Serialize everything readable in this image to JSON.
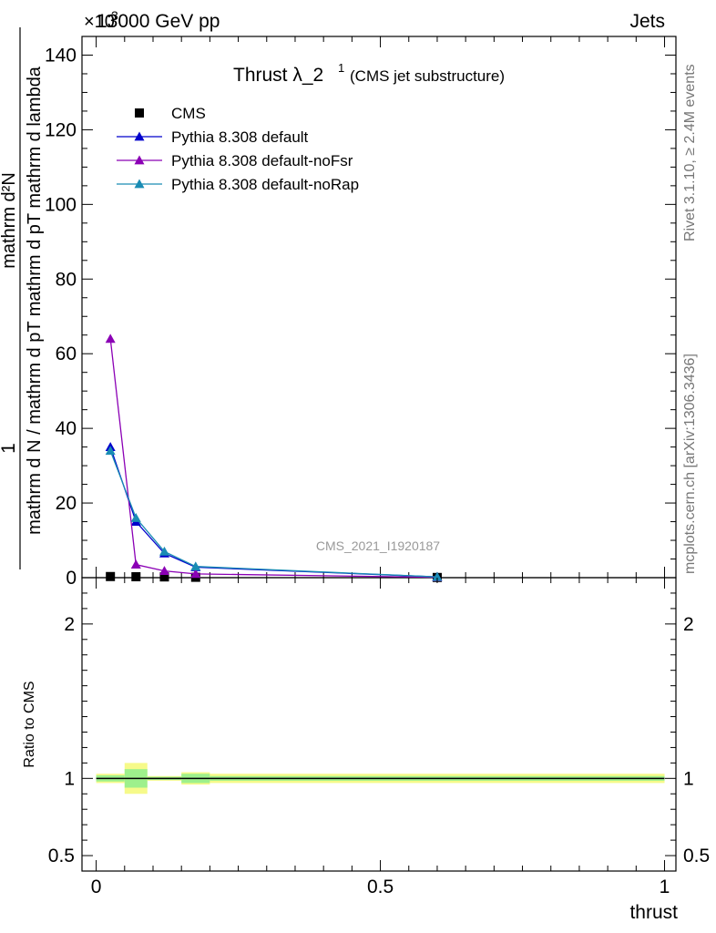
{
  "header": {
    "left": "13000 GeV pp",
    "right": "Jets",
    "exponent_prefix": "×10",
    "exponent": "3"
  },
  "side_labels": {
    "rivet": "Rivet 3.1.10, ≥ 2.4M events",
    "mcplots": "mcplots.cern.ch [arXiv:1306.3436]"
  },
  "watermark": "CMS_2021_I1920187",
  "chart_data": [
    {
      "type": "line",
      "title": "Thrust λ_2",
      "title_sup": "1",
      "subtitle": "(CMS jet substructure)",
      "ylabel_top": "1",
      "ylabel_num": "mathrm d²N",
      "ylabel_den": "mathrm d N / mathrm d pT mathrm d pT mathrm d lambda",
      "ylim": [
        0,
        145
      ],
      "y_ticks": [
        0,
        20,
        40,
        60,
        80,
        100,
        120,
        140
      ],
      "y_tick_labels": [
        "0",
        "20",
        "40",
        "60",
        "80",
        "100",
        "120",
        "140"
      ],
      "xlim": [
        -0.025,
        1.02
      ],
      "legend_position": "top-left",
      "series": [
        {
          "name": "CMS",
          "marker": "square",
          "color": "#000000",
          "x": [
            0.025,
            0.07,
            0.12,
            0.175,
            0.6
          ],
          "values": [
            0.3,
            0.25,
            0.2,
            0.1,
            0.05
          ]
        },
        {
          "name": "Pythia 8.308 default",
          "marker": "triangle",
          "color": "#0000cc",
          "x": [
            0.025,
            0.07,
            0.12,
            0.175,
            0.6
          ],
          "values": [
            35,
            15,
            6.5,
            2.8,
            0.2
          ]
        },
        {
          "name": "Pythia 8.308 default-noFsr",
          "marker": "triangle",
          "color": "#8b00b5",
          "x": [
            0.025,
            0.07,
            0.12,
            0.175,
            0.6
          ],
          "values": [
            64,
            3.5,
            1.8,
            1.0,
            0.1
          ]
        },
        {
          "name": "Pythia 8.308 default-noRap",
          "marker": "triangle",
          "color": "#1a8cb4",
          "x": [
            0.025,
            0.07,
            0.12,
            0.175,
            0.6
          ],
          "values": [
            34,
            16,
            7,
            3.0,
            0.2
          ]
        }
      ]
    },
    {
      "type": "line",
      "ylabel": "Ratio to CMS",
      "xlabel": "thrust",
      "ylim": [
        0.4,
        2.3
      ],
      "y_ticks": [
        0.5,
        1,
        2
      ],
      "y_tick_labels": [
        "0.5",
        "1",
        "2"
      ],
      "x_ticks": [
        0,
        0.5,
        1
      ],
      "x_tick_labels": [
        "0",
        "0.5",
        "1"
      ],
      "xlim": [
        -0.025,
        1.02
      ],
      "reference": 1,
      "bands": [
        {
          "x": [
            0.0,
            0.05
          ],
          "inner": [
            0.98,
            1.02
          ],
          "outer": [
            0.97,
            1.03
          ]
        },
        {
          "x": [
            0.05,
            0.09
          ],
          "inner": [
            0.94,
            1.06
          ],
          "outer": [
            0.9,
            1.1
          ]
        },
        {
          "x": [
            0.09,
            0.15
          ],
          "inner": [
            0.99,
            1.01
          ],
          "outer": [
            0.985,
            1.015
          ]
        },
        {
          "x": [
            0.15,
            0.2
          ],
          "inner": [
            0.97,
            1.03
          ],
          "outer": [
            0.96,
            1.04
          ]
        },
        {
          "x": [
            0.2,
            1.0
          ],
          "inner": [
            0.985,
            1.015
          ],
          "outer": [
            0.97,
            1.03
          ]
        }
      ]
    }
  ],
  "colors": {
    "band_inner": "#9ef08c",
    "band_outer": "#f6fa8a"
  }
}
